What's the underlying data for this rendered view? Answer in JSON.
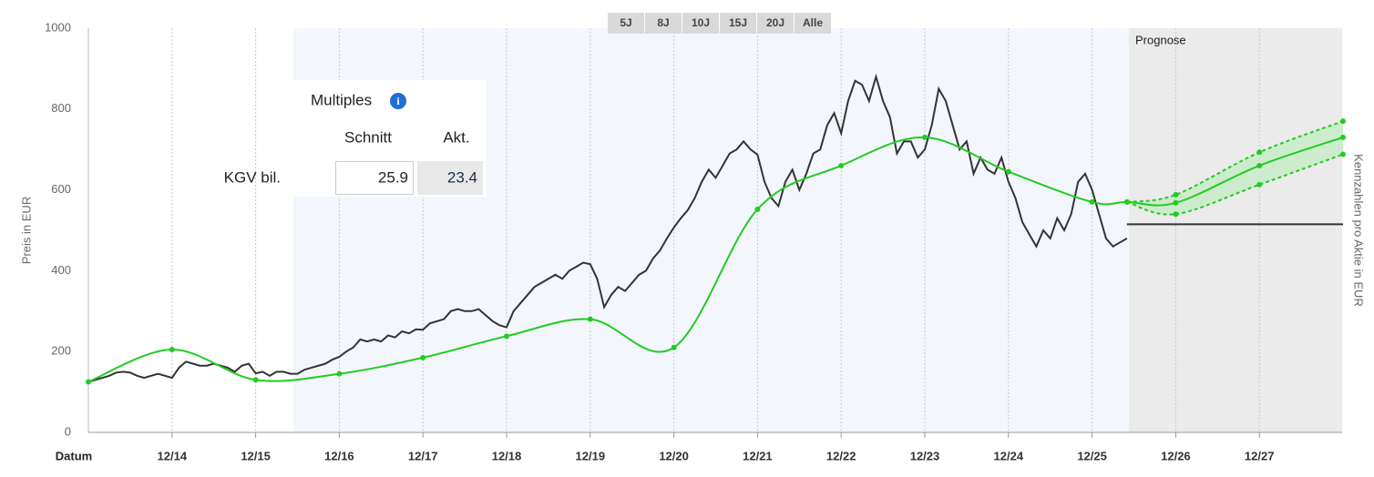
{
  "chart_data": {
    "type": "line",
    "annotation": "Prognose",
    "xlabel": "Datum",
    "ylabel": "Preis in EUR",
    "y2label": "Kennzahlen pro Aktie in EUR",
    "ylim": [
      0,
      1000
    ],
    "yticks": [
      0,
      200,
      400,
      600,
      800,
      1000
    ],
    "xticks": [
      "12/14",
      "12/15",
      "12/16",
      "12/17",
      "12/18",
      "12/19",
      "12/20",
      "12/21",
      "12/22",
      "12/23",
      "12/24",
      "12/25",
      "12/26",
      "12/27"
    ],
    "grid": true,
    "fill_between": [
      2,
      3
    ],
    "band_color": "#cdeccd",
    "series": [
      {
        "color": "#333333",
        "x": [
          "12/13",
          "01/14",
          "02/14",
          "03/14",
          "04/14",
          "05/14",
          "06/14",
          "07/14",
          "08/14",
          "09/14",
          "10/14",
          "11/14",
          "12/14",
          "01/15",
          "02/15",
          "03/15",
          "04/15",
          "05/15",
          "06/15",
          "07/15",
          "08/15",
          "09/15",
          "10/15",
          "11/15",
          "12/15",
          "01/16",
          "02/16",
          "03/16",
          "04/16",
          "05/16",
          "06/16",
          "07/16",
          "08/16",
          "09/16",
          "10/16",
          "11/16",
          "12/16",
          "01/17",
          "02/17",
          "03/17",
          "04/17",
          "05/17",
          "06/17",
          "07/17",
          "08/17",
          "09/17",
          "10/17",
          "11/17",
          "12/17",
          "01/18",
          "02/18",
          "03/18",
          "04/18",
          "05/18",
          "06/18",
          "07/18",
          "08/18",
          "09/18",
          "10/18",
          "11/18",
          "12/18",
          "01/19",
          "02/19",
          "03/19",
          "04/19",
          "05/19",
          "06/19",
          "07/19",
          "08/19",
          "09/19",
          "10/19",
          "11/19",
          "12/19",
          "01/20",
          "02/20",
          "03/20",
          "04/20",
          "05/20",
          "06/20",
          "07/20",
          "08/20",
          "09/20",
          "10/20",
          "11/20",
          "12/20",
          "01/21",
          "02/21",
          "03/21",
          "04/21",
          "05/21",
          "06/21",
          "07/21",
          "08/21",
          "09/21",
          "10/21",
          "11/21",
          "12/21",
          "01/22",
          "02/22",
          "03/22",
          "04/22",
          "05/22",
          "06/22",
          "07/22",
          "08/22",
          "09/22",
          "10/22",
          "11/22",
          "12/22",
          "01/23",
          "02/23",
          "03/23",
          "04/23",
          "05/23",
          "06/23",
          "07/23",
          "08/23",
          "09/23",
          "10/23",
          "11/23",
          "12/23",
          "01/24",
          "02/24",
          "03/24",
          "04/24",
          "05/24",
          "06/24",
          "07/24",
          "08/24",
          "09/24",
          "10/24",
          "11/24",
          "12/24",
          "01/25",
          "02/25",
          "03/25",
          "04/25",
          "05/25",
          "06/25",
          "07/25",
          "08/25",
          "09/25",
          "10/25",
          "11/25",
          "12/25",
          "01/26",
          "02/26",
          "03/26",
          "04/26",
          "05/26"
        ],
        "values": [
          125,
          130,
          135,
          140,
          148,
          150,
          148,
          140,
          135,
          140,
          145,
          140,
          135,
          160,
          175,
          170,
          165,
          165,
          170,
          165,
          160,
          150,
          165,
          170,
          146,
          150,
          140,
          150,
          150,
          145,
          145,
          155,
          160,
          165,
          170,
          180,
          187,
          200,
          210,
          230,
          225,
          230,
          225,
          240,
          235,
          250,
          245,
          255,
          254,
          270,
          275,
          280,
          300,
          305,
          300,
          300,
          305,
          290,
          275,
          265,
          260,
          300,
          320,
          340,
          360,
          370,
          380,
          390,
          380,
          400,
          410,
          420,
          416,
          380,
          310,
          340,
          360,
          350,
          370,
          390,
          400,
          430,
          450,
          480,
          507,
          530,
          550,
          580,
          620,
          650,
          630,
          660,
          690,
          700,
          720,
          700,
          687,
          620,
          580,
          560,
          620,
          650,
          600,
          640,
          690,
          700,
          760,
          790,
          740,
          820,
          870,
          860,
          820,
          880,
          820,
          780,
          690,
          720,
          720,
          680,
          700,
          760,
          850,
          820,
          760,
          700,
          720,
          640,
          680,
          650,
          640,
          680,
          620,
          580,
          520,
          490,
          460,
          500,
          480,
          530,
          500,
          540,
          620,
          640,
          600,
          540,
          480,
          460,
          470,
          480
        ]
      },
      {
        "color": "#22cc22",
        "smooth": true,
        "markers": true,
        "x": [
          "12/13",
          "12/14",
          "12/15",
          "12/16",
          "12/17",
          "12/18",
          "12/19",
          "12/20",
          "12/21",
          "12/22",
          "12/23",
          "12/24",
          "12/25",
          "05/26",
          "12/26",
          "12/27",
          "12/28"
        ],
        "values": [
          125,
          205,
          130,
          145,
          185,
          238,
          280,
          210,
          552,
          660,
          730,
          645,
          570,
          570,
          568,
          660,
          730
        ]
      },
      {
        "color": "#22cc22",
        "smooth": true,
        "markers": true,
        "dashed": true,
        "x": [
          "05/26",
          "12/26",
          "12/27",
          "12/28"
        ],
        "values": [
          570,
          588,
          693,
          770
        ]
      },
      {
        "color": "#22cc22",
        "smooth": true,
        "markers": true,
        "dashed": true,
        "x": [
          "05/26",
          "12/26",
          "12/27",
          "12/28"
        ],
        "values": [
          570,
          540,
          613,
          688
        ]
      },
      {
        "color": "#333333",
        "x": [
          "05/26",
          "12/28"
        ],
        "values": [
          515,
          515
        ]
      }
    ]
  },
  "range_buttons": [
    "5J",
    "8J",
    "10J",
    "15J",
    "20J",
    "Alle"
  ],
  "multiples": {
    "title": "Multiples",
    "columns": [
      "Schnitt",
      "Akt."
    ],
    "rows": [
      {
        "label": "KGV bil.",
        "values": [
          25.9,
          23.4
        ]
      }
    ]
  }
}
